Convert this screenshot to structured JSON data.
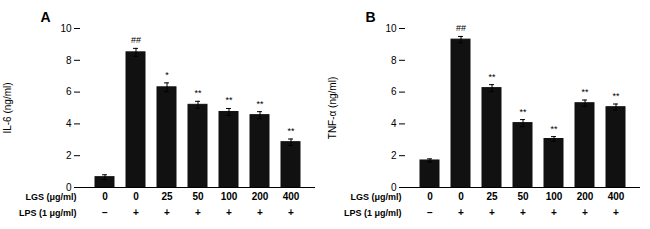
{
  "chart_data": [
    {
      "type": "bar",
      "title": "A",
      "ylabel": "IL-6 (ng/ml)",
      "xlabel": "LGS (μg/ml)",
      "categories": [
        "0",
        "0",
        "25",
        "50",
        "100",
        "200",
        "400"
      ],
      "values": [
        0.65,
        8.5,
        6.3,
        5.2,
        4.75,
        4.55,
        2.85
      ],
      "errors": [
        0.15,
        0.25,
        0.28,
        0.22,
        0.22,
        0.22,
        0.2
      ],
      "significance": [
        null,
        "##",
        "*",
        "**",
        "**",
        "**",
        "**"
      ],
      "annotations": [
        {
          "label": "LPS (1 μg/ml)",
          "texts": [
            "−",
            "+",
            "+",
            "+",
            "+",
            "+",
            "+"
          ]
        }
      ],
      "color": "#111111",
      "ylim": [
        0,
        10
      ],
      "yticks": [
        0,
        2,
        4,
        6,
        8,
        10
      ],
      "grid": false
    },
    {
      "type": "bar",
      "title": "B",
      "ylabel": "TNF-α (ng/ml)",
      "xlabel": "LGS (μg/ml)",
      "categories": [
        "0",
        "0",
        "25",
        "50",
        "100",
        "200",
        "400"
      ],
      "values": [
        1.7,
        9.3,
        6.25,
        4.05,
        3.05,
        5.3,
        5.05
      ],
      "errors": [
        0.1,
        0.2,
        0.22,
        0.22,
        0.15,
        0.2,
        0.2
      ],
      "significance": [
        null,
        "##",
        "**",
        "**",
        "**",
        "**",
        "**"
      ],
      "annotations": [
        {
          "label": "LPS (1 μg/ml)",
          "texts": [
            "−",
            "+",
            "+",
            "+",
            "+",
            "+",
            "+"
          ]
        }
      ],
      "color": "#111111",
      "ylim": [
        0,
        10
      ],
      "yticks": [
        0,
        2,
        4,
        6,
        8,
        10
      ],
      "grid": false
    }
  ]
}
